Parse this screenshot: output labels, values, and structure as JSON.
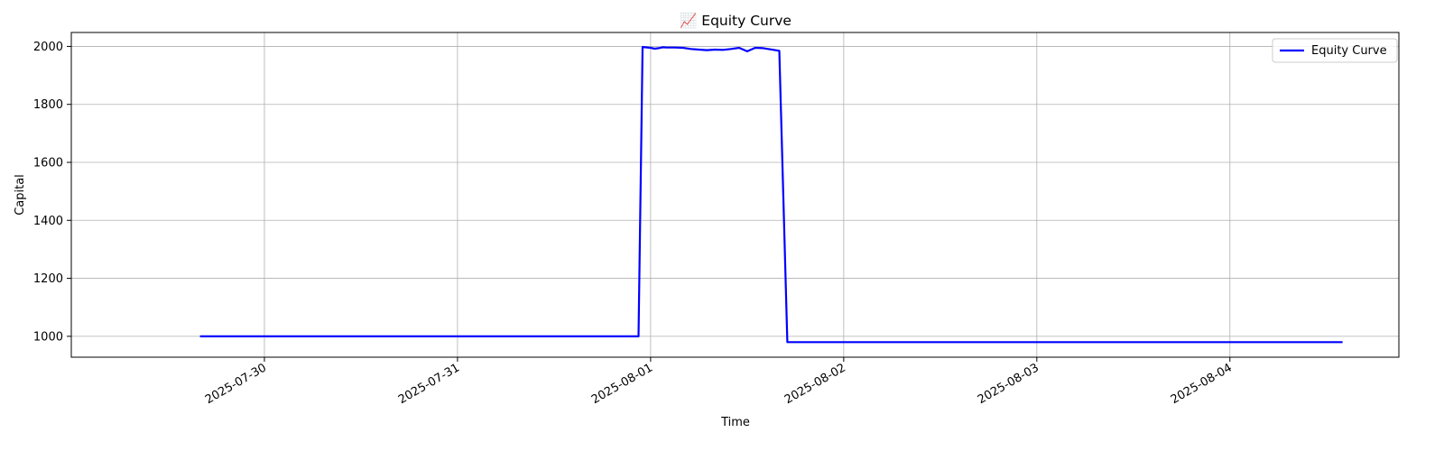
{
  "chart_data": {
    "type": "line",
    "title": "📈 Equity Curve",
    "xlabel": "Time",
    "ylabel": "Capital",
    "x_tick_labels": [
      "2025-07-30",
      "2025-07-31",
      "2025-08-01",
      "2025-08-02",
      "2025-08-03",
      "2025-08-04"
    ],
    "y_ticks": [
      1000,
      1200,
      1400,
      1600,
      1800,
      2000
    ],
    "xlim": [
      "2025-07-29 00:00",
      "2025-08-04 21:00"
    ],
    "ylim": [
      928,
      2048
    ],
    "grid": true,
    "legend_position": "top-right",
    "series": [
      {
        "name": "Equity Curve",
        "color": "#0000ff",
        "points": [
          [
            "2025-07-29 16:00",
            1000
          ],
          [
            "2025-07-31 22:00",
            1000
          ],
          [
            "2025-07-31 22:30",
            1000
          ],
          [
            "2025-07-31 23:00",
            1998
          ],
          [
            "2025-08-01 00:00",
            1995
          ],
          [
            "2025-08-01 00:30",
            1992
          ],
          [
            "2025-08-01 01:00",
            1994
          ],
          [
            "2025-08-01 01:30",
            1997
          ],
          [
            "2025-08-01 02:00",
            1996
          ],
          [
            "2025-08-01 03:00",
            1996
          ],
          [
            "2025-08-01 04:00",
            1995
          ],
          [
            "2025-08-01 05:00",
            1991
          ],
          [
            "2025-08-01 06:00",
            1989
          ],
          [
            "2025-08-01 07:00",
            1987
          ],
          [
            "2025-08-01 08:00",
            1989
          ],
          [
            "2025-08-01 09:00",
            1988
          ],
          [
            "2025-08-01 10:00",
            1991
          ],
          [
            "2025-08-01 11:00",
            1995
          ],
          [
            "2025-08-01 12:00",
            1983
          ],
          [
            "2025-08-01 13:00",
            1995
          ],
          [
            "2025-08-01 14:00",
            1994
          ],
          [
            "2025-08-01 16:00",
            1985
          ],
          [
            "2025-08-01 17:00",
            980
          ],
          [
            "2025-08-01 18:00",
            980
          ],
          [
            "2025-08-04 14:00",
            980
          ]
        ]
      }
    ]
  }
}
